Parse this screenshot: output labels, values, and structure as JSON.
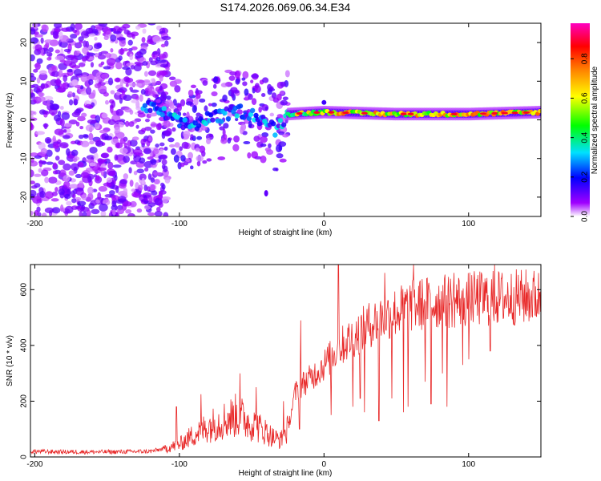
{
  "title": "S174.2026.069.06.34.E34",
  "chart_data": [
    {
      "type": "heatmap",
      "name": "spectrogram",
      "xlabel": "Height of straight line (km)",
      "ylabel": "Frequency (Hz)",
      "xlim": [
        -203,
        150
      ],
      "ylim": [
        -25,
        25
      ],
      "xticks": [
        -200,
        -100,
        0,
        100
      ],
      "xtick_labels": [
        "-200",
        "-100",
        "0",
        "100"
      ],
      "yticks": [
        20,
        10,
        0,
        -10,
        -20
      ],
      "ytick_labels": [
        "20",
        "10",
        "0",
        "-10",
        "-20"
      ],
      "ridge": [
        {
          "x": -120,
          "f": 3.0
        },
        {
          "x": -110,
          "f": 1.5
        },
        {
          "x": -100,
          "f": -1.0
        },
        {
          "x": -90,
          "f": -1.5
        },
        {
          "x": -80,
          "f": 0.5
        },
        {
          "x": -70,
          "f": 1.0
        },
        {
          "x": -60,
          "f": 2.5
        },
        {
          "x": -50,
          "f": 1.5
        },
        {
          "x": -40,
          "f": -0.5
        },
        {
          "x": -33,
          "f": -3.0
        },
        {
          "x": -30,
          "f": -1.0
        },
        {
          "x": -25,
          "f": 1.5
        },
        {
          "x": 0,
          "f": 2.0
        },
        {
          "x": 50,
          "f": 1.5
        },
        {
          "x": 100,
          "f": 1.5
        },
        {
          "x": 150,
          "f": 2.0
        }
      ],
      "colorbar": {
        "label": "Normalized spectral amplitude",
        "range": [
          0,
          0.98
        ],
        "ticks": [
          0.0,
          0.2,
          0.4,
          0.6,
          0.8
        ],
        "tick_labels": [
          "0.0",
          "0.2",
          "0.4",
          "0.6",
          "0.8"
        ],
        "colors": [
          "#ffffff",
          "#a000ff",
          "#0000ff",
          "#00e0ff",
          "#00ff00",
          "#ffff00",
          "#ff8000",
          "#ff0000",
          "#ff00c0"
        ]
      }
    },
    {
      "type": "line",
      "name": "snr",
      "xlabel": "Height of straight line (km)",
      "ylabel": "SNR (10 * v/v)",
      "xlim": [
        -203,
        150
      ],
      "ylim": [
        0,
        690
      ],
      "xticks": [
        -200,
        -100,
        0,
        100
      ],
      "xtick_labels": [
        "-200",
        "-100",
        "0",
        "100"
      ],
      "yticks": [
        0,
        200,
        400,
        600
      ],
      "ytick_labels": [
        "0",
        "200",
        "400",
        "600"
      ],
      "color": "#e82828",
      "series": [
        {
          "name": "SNR",
          "points": [
            {
              "x": -203,
              "y": 20
            },
            {
              "x": -180,
              "y": 18
            },
            {
              "x": -150,
              "y": 18
            },
            {
              "x": -120,
              "y": 20
            },
            {
              "x": -110,
              "y": 30
            },
            {
              "x": -100,
              "y": 45
            },
            {
              "x": -90,
              "y": 80
            },
            {
              "x": -80,
              "y": 110
            },
            {
              "x": -70,
              "y": 130
            },
            {
              "x": -60,
              "y": 150
            },
            {
              "x": -50,
              "y": 120
            },
            {
              "x": -40,
              "y": 90
            },
            {
              "x": -35,
              "y": 70
            },
            {
              "x": -30,
              "y": 60
            },
            {
              "x": -25,
              "y": 100
            },
            {
              "x": -20,
              "y": 230
            },
            {
              "x": -15,
              "y": 260
            },
            {
              "x": -10,
              "y": 280
            },
            {
              "x": 0,
              "y": 330
            },
            {
              "x": 10,
              "y": 390
            },
            {
              "x": 20,
              "y": 430
            },
            {
              "x": 30,
              "y": 470
            },
            {
              "x": 40,
              "y": 500
            },
            {
              "x": 50,
              "y": 520
            },
            {
              "x": 60,
              "y": 540
            },
            {
              "x": 70,
              "y": 550
            },
            {
              "x": 80,
              "y": 555
            },
            {
              "x": 90,
              "y": 560
            },
            {
              "x": 100,
              "y": 565
            },
            {
              "x": 120,
              "y": 570
            },
            {
              "x": 150,
              "y": 575
            }
          ]
        }
      ],
      "dips": [
        {
          "x": -17,
          "y": 100
        },
        {
          "x": 5,
          "y": 150
        },
        {
          "x": 10,
          "y": 30
        },
        {
          "x": 20,
          "y": 180
        },
        {
          "x": 25,
          "y": 210
        },
        {
          "x": 28,
          "y": 160
        },
        {
          "x": 38,
          "y": 130
        },
        {
          "x": 47,
          "y": 210
        },
        {
          "x": 55,
          "y": 160
        },
        {
          "x": 58,
          "y": 180
        },
        {
          "x": 62,
          "y": 220
        },
        {
          "x": 70,
          "y": 270
        },
        {
          "x": 74,
          "y": 190
        },
        {
          "x": 82,
          "y": 300
        },
        {
          "x": 85,
          "y": 180
        },
        {
          "x": 96,
          "y": 330
        },
        {
          "x": 100,
          "y": 350
        },
        {
          "x": 115,
          "y": 380
        }
      ],
      "peaks": [
        {
          "x": -102,
          "y": 180
        },
        {
          "x": -85,
          "y": 225
        },
        {
          "x": -58,
          "y": 300
        },
        {
          "x": -47,
          "y": 250
        },
        {
          "x": -28,
          "y": 200
        },
        {
          "x": -16,
          "y": 490
        },
        {
          "x": 10,
          "y": 690
        },
        {
          "x": 42,
          "y": 660
        },
        {
          "x": 62,
          "y": 690
        },
        {
          "x": 90,
          "y": 660
        },
        {
          "x": 118,
          "y": 690
        }
      ]
    }
  ]
}
